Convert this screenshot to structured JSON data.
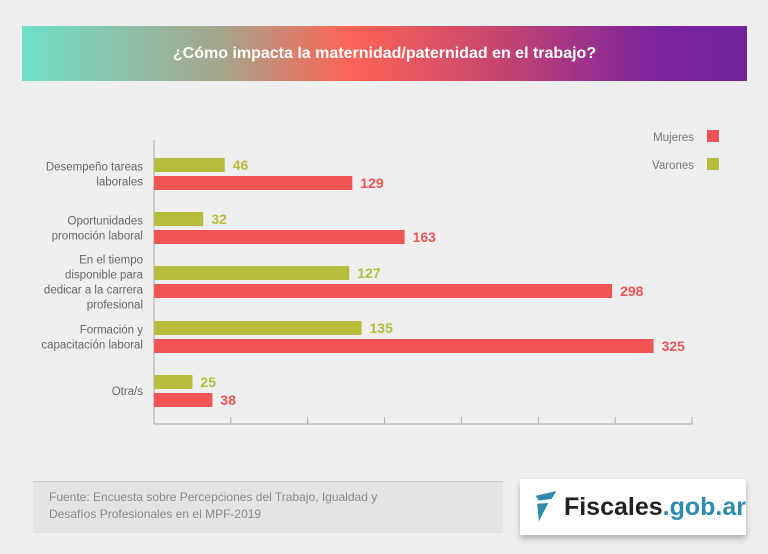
{
  "chart_data": {
    "type": "bar",
    "orientation": "horizontal",
    "title": "¿Cómo impacta la maternidad/paternidad en el trabajo?",
    "categories": [
      [
        "Desempeño tareas",
        "laborales"
      ],
      [
        "Oportunidades",
        "promoción laboral"
      ],
      [
        "En el tiempo",
        "disponible para",
        "dedicar a la carrera",
        "profesional"
      ],
      [
        "Formación y",
        "capacitación laboral"
      ],
      [
        "Otra/s"
      ]
    ],
    "series": [
      {
        "name": "Varones",
        "color": "#b6bc3b",
        "values": [
          46,
          32,
          127,
          135,
          25
        ]
      },
      {
        "name": "Mujeres",
        "color": "#f05454",
        "values": [
          129,
          163,
          298,
          325,
          38
        ]
      }
    ],
    "legend": [
      "Mujeres",
      "Varones"
    ],
    "legend_placement": "top-right",
    "xlim": [
      0,
      350
    ],
    "tick_step": 50,
    "tick_labels_shown": false,
    "grid": false
  },
  "footer": {
    "source_lines": [
      "Fuente: Encuesta sobre Percepciones del Trabajo, Igualdad y",
      "Desafíos Profesionales en el MPF-2019"
    ]
  },
  "logo": {
    "text_main": "Fiscales",
    "text_suffix": ".gob.ar"
  }
}
